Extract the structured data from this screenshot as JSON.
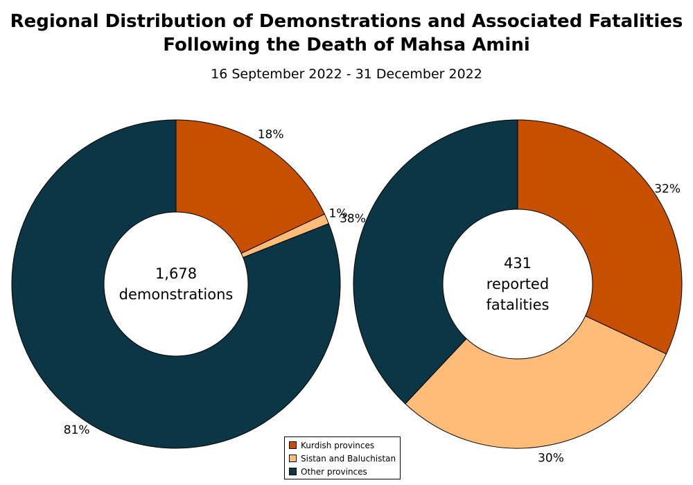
{
  "title_line1": "Regional Distribution of Demonstrations and Associated Fatalities",
  "title_line2": "Following the Death of Mahsa Amini",
  "subtitle": "16 September 2022 - 31 December 2022",
  "chart_data": [
    {
      "type": "pie",
      "donut": true,
      "center_text": [
        "1,678",
        "demonstrations"
      ],
      "categories": [
        "Kurdish provinces",
        "Sistan and Baluchistan",
        "Other provinces"
      ],
      "values": [
        18,
        1,
        81
      ],
      "labels": [
        "18%",
        "1%",
        "81%"
      ],
      "colors": [
        "#c75000",
        "#ffbb78",
        "#0b3646"
      ]
    },
    {
      "type": "pie",
      "donut": true,
      "center_text": [
        "431",
        "reported",
        "fatalities"
      ],
      "categories": [
        "Kurdish provinces",
        "Sistan and Baluchistan",
        "Other provinces"
      ],
      "values": [
        32,
        30,
        38
      ],
      "labels": [
        "32%",
        "30%",
        "38%"
      ],
      "colors": [
        "#c75000",
        "#ffbb78",
        "#0b3646"
      ]
    }
  ],
  "legend": {
    "placement": "bottom-center",
    "items": [
      {
        "label": "Kurdish provinces",
        "color": "#c75000"
      },
      {
        "label": "Sistan and Baluchistan",
        "color": "#ffbb78"
      },
      {
        "label": "Other provinces",
        "color": "#0b3646"
      }
    ]
  }
}
